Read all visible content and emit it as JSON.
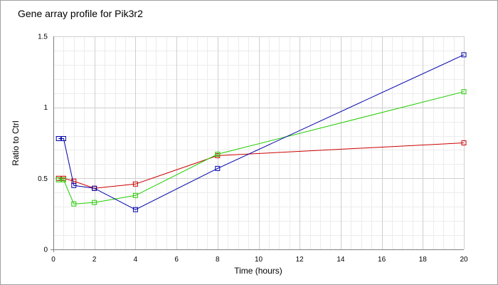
{
  "chart_data": {
    "type": "line",
    "title": "Gene array profile for Pik3r2",
    "xlabel": "Time (hours)",
    "ylabel": "Ratio to Ctrl",
    "xlim": [
      0,
      20
    ],
    "ylim": [
      0,
      1.5
    ],
    "x_ticks": [
      0,
      2,
      4,
      6,
      8,
      10,
      12,
      14,
      16,
      18,
      20
    ],
    "y_ticks": [
      0,
      0.5,
      1,
      1.5
    ],
    "y_tick_labels": [
      "0",
      "0.5",
      "1",
      "1.5"
    ],
    "x_minor_step": 0.5,
    "y_minor_step": 0.1,
    "grid": true,
    "legend": "none",
    "marker": "square",
    "series": [
      {
        "color": "#cc0000",
        "x": [
          0.25,
          0.5,
          1,
          2,
          4,
          8,
          20
        ],
        "y": [
          0.5,
          0.5,
          0.48,
          0.43,
          0.46,
          0.66,
          0.75
        ]
      },
      {
        "color": "#22cc00",
        "x": [
          0.25,
          0.5,
          1,
          2,
          4,
          8,
          20
        ],
        "y": [
          0.49,
          0.49,
          0.32,
          0.33,
          0.38,
          0.67,
          1.11
        ]
      },
      {
        "color": "#0000aa",
        "x": [
          0.25,
          0.5,
          1,
          2,
          4,
          8,
          20
        ],
        "y": [
          0.78,
          0.78,
          0.45,
          0.43,
          0.28,
          0.57,
          1.37
        ]
      }
    ]
  }
}
